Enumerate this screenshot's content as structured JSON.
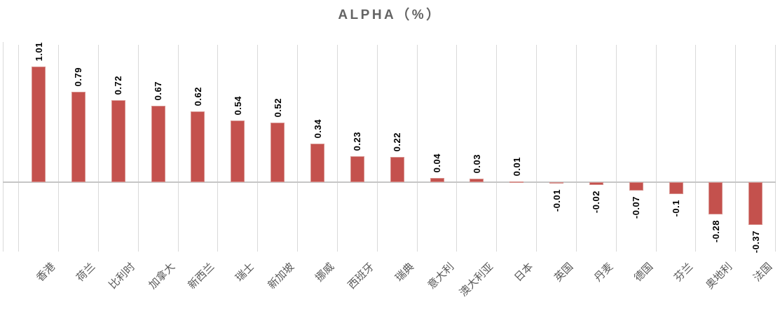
{
  "chart_data": {
    "type": "bar",
    "title": "ALPHA（%）",
    "categories": [
      "香港",
      "荷兰",
      "比利时",
      "加拿大",
      "新西兰",
      "瑞士",
      "新加坡",
      "挪威",
      "西班牙",
      "瑞典",
      "意大利",
      "澳大利亚",
      "日本",
      "英国",
      "丹麦",
      "德国",
      "芬兰",
      "奥地利",
      "法国"
    ],
    "values": [
      1.01,
      0.79,
      0.72,
      0.67,
      0.62,
      0.54,
      0.52,
      0.34,
      0.23,
      0.22,
      0.04,
      0.03,
      0.01,
      -0.01,
      -0.02,
      -0.07,
      -0.1,
      -0.28,
      -0.37
    ],
    "value_labels": [
      "1.01",
      "0.79",
      "0.72",
      "0.67",
      "0.62",
      "0.54",
      "0.52",
      "0.34",
      "0.23",
      "0.22",
      "0.04",
      "0.03",
      "0.01",
      "-0.01",
      "-0.02",
      "-0.07",
      "-0.1",
      "-0.28",
      "-0.37"
    ],
    "ylim": [
      -0.6,
      1.2
    ],
    "xlabel": "",
    "ylabel": "",
    "legend": "none",
    "grid": "vertical category-boundary gridlines and horizontal zero baseline; no y-axis tick labels",
    "value_label_rotation_deg": 90,
    "category_label_rotation_deg": 45,
    "colors": {
      "bar_fill": "#C4514D",
      "bar_border": "#D7918D",
      "gridline": "#D9D9D9",
      "zero_line": "#C6C6C6",
      "axis_line": "#D9D9D9",
      "title_text": "#646464",
      "value_label_text": "#000000",
      "category_label_text": "#595959",
      "background": "#FFFFFF"
    }
  }
}
